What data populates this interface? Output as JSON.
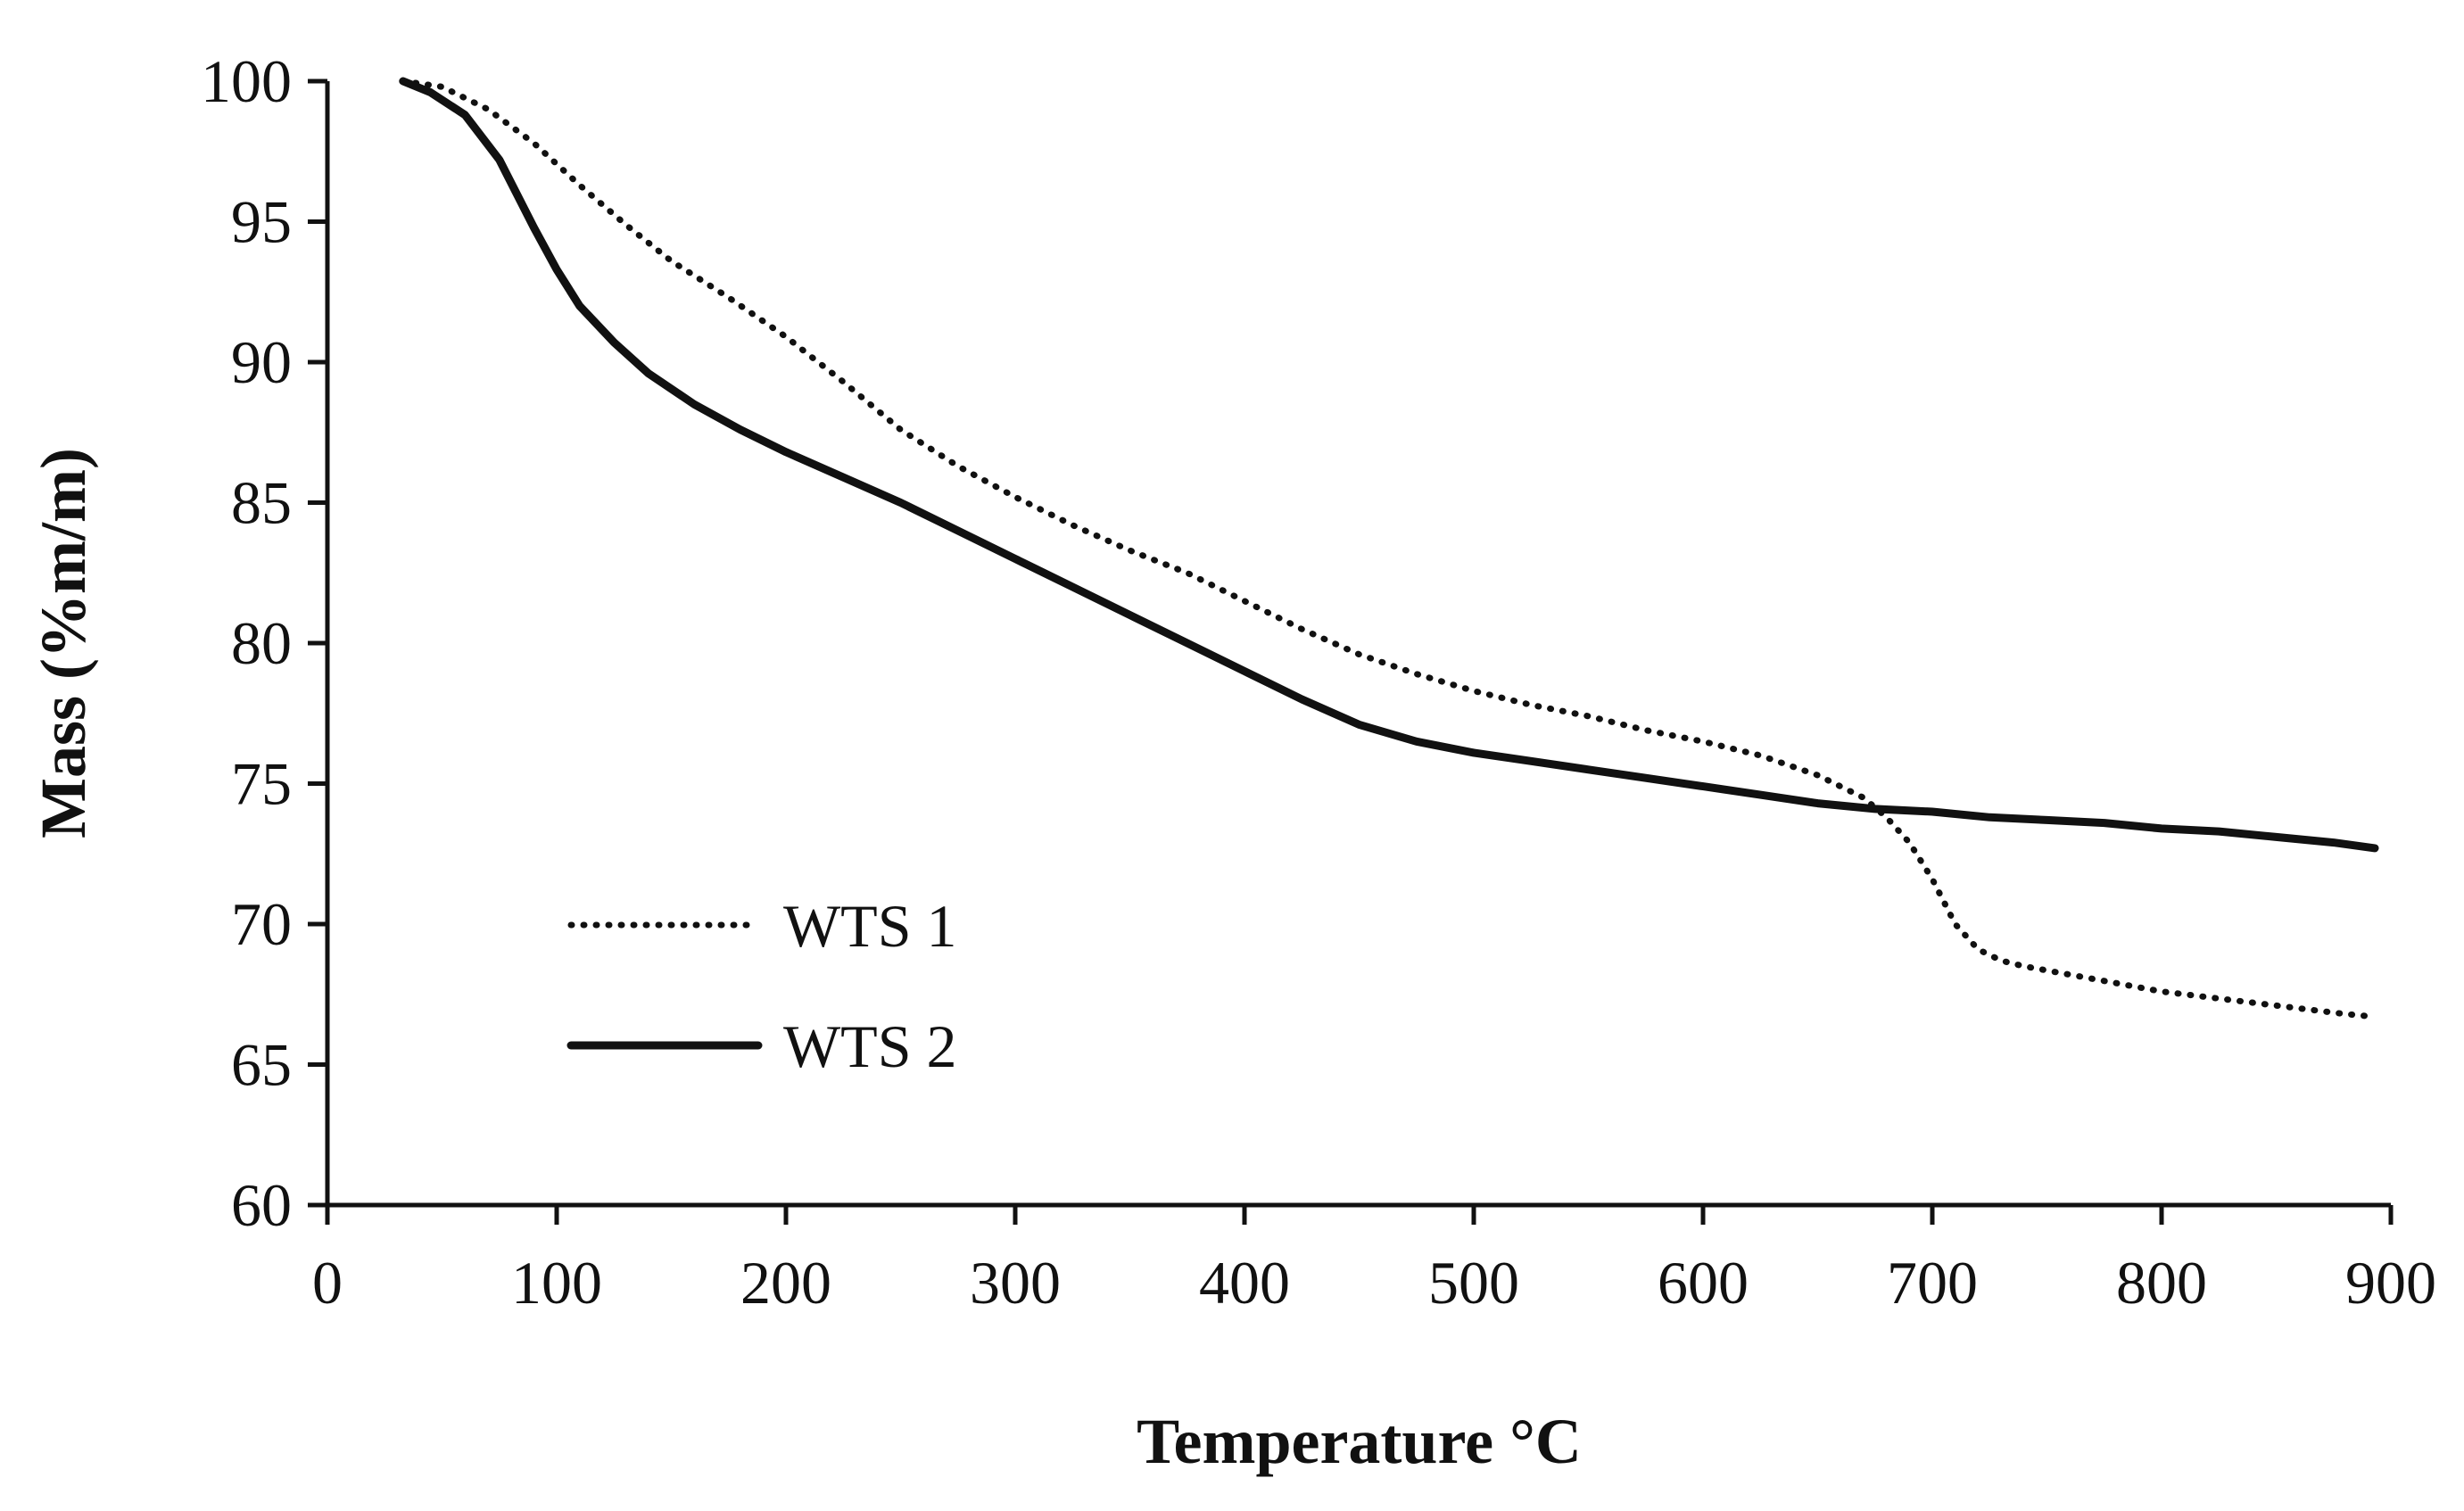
{
  "chart_data": {
    "type": "line",
    "title": "",
    "xlabel": "Temperature °C",
    "ylabel": "Mass (%m/m)",
    "xlim": [
      0,
      900
    ],
    "ylim": [
      60,
      100
    ],
    "xticks": [
      "0",
      "100",
      "200",
      "300",
      "400",
      "500",
      "600",
      "700",
      "800",
      "900"
    ],
    "yticks": [
      "60",
      "65",
      "70",
      "75",
      "80",
      "85",
      "90",
      "95",
      "100"
    ],
    "grid": false,
    "legend_position": "bottom-left",
    "line_color": "#111111",
    "series": [
      {
        "name": "WTS 1",
        "style": "dotted",
        "x": [
          33,
          50,
          70,
          90,
          110,
          130,
          150,
          175,
          200,
          225,
          250,
          275,
          300,
          325,
          350,
          375,
          400,
          425,
          450,
          475,
          500,
          525,
          550,
          575,
          600,
          625,
          650,
          670,
          680,
          690,
          700,
          710,
          720,
          730,
          740,
          760,
          780,
          800,
          820,
          840,
          860,
          880,
          893
        ],
        "y": [
          100,
          99.8,
          99.0,
          97.8,
          96.3,
          94.9,
          93.6,
          92.3,
          90.9,
          89.3,
          87.6,
          86.3,
          85.2,
          84.2,
          83.3,
          82.5,
          81.5,
          80.5,
          79.6,
          78.9,
          78.3,
          77.8,
          77.4,
          76.9,
          76.5,
          76.0,
          75.3,
          74.5,
          73.8,
          72.9,
          71.6,
          70.0,
          69.1,
          68.7,
          68.5,
          68.2,
          67.9,
          67.6,
          67.4,
          67.2,
          67.0,
          66.8,
          66.7
        ]
      },
      {
        "name": "WTS 2",
        "style": "solid",
        "x": [
          33,
          45,
          60,
          75,
          90,
          100,
          110,
          125,
          140,
          160,
          180,
          200,
          225,
          250,
          275,
          300,
          325,
          350,
          375,
          400,
          425,
          450,
          475,
          500,
          525,
          550,
          575,
          600,
          625,
          650,
          675,
          700,
          725,
          750,
          775,
          800,
          825,
          850,
          875,
          893
        ],
        "y": [
          100,
          99.6,
          98.8,
          97.2,
          94.8,
          93.3,
          92.0,
          90.7,
          89.6,
          88.5,
          87.6,
          86.8,
          85.9,
          85.0,
          84.0,
          83.0,
          82.0,
          81.0,
          80.0,
          79.0,
          78.0,
          77.1,
          76.5,
          76.1,
          75.8,
          75.5,
          75.2,
          74.9,
          74.6,
          74.3,
          74.1,
          74.0,
          73.8,
          73.7,
          73.6,
          73.4,
          73.3,
          73.1,
          72.9,
          72.7
        ]
      }
    ]
  }
}
